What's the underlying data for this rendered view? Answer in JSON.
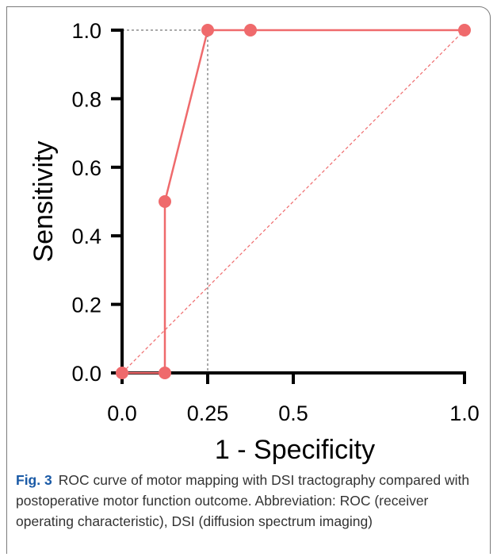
{
  "chart_data": {
    "type": "line",
    "xlabel": "1 - Specificity",
    "ylabel": "Sensitivity",
    "xlim": [
      0,
      1
    ],
    "ylim": [
      0,
      1
    ],
    "x_ticks": [
      "0.0",
      "0.25",
      "0.5",
      "1.0"
    ],
    "x_tick_values": [
      0,
      0.25,
      0.5,
      1
    ],
    "y_ticks": [
      "0.0",
      "0.2",
      "0.4",
      "0.6",
      "0.8",
      "1.0"
    ],
    "y_tick_values": [
      0,
      0.2,
      0.4,
      0.6,
      0.8,
      1
    ],
    "series": [
      {
        "color": "#ef6a6c",
        "points": [
          [
            0,
            0
          ],
          [
            0.125,
            0
          ],
          [
            0.125,
            0.5
          ],
          [
            0.25,
            1
          ],
          [
            0.375,
            1
          ],
          [
            1,
            1
          ]
        ]
      }
    ],
    "reference_line": {
      "from": [
        0,
        0
      ],
      "to": [
        1,
        1
      ],
      "color": "#ef6a6c",
      "style": "dashed"
    },
    "guide_point": {
      "x": 0.25,
      "y": 1,
      "style": "dotted"
    },
    "grid": false
  },
  "caption": {
    "label": "Fig. 3",
    "text": "ROC curve of motor mapping with DSI tractography compared with postoperative motor function outcome. Abbreviation: ROC (receiver operating characteristic), DSI (diffusion spectrum imaging)"
  },
  "colors": {
    "caption_label": "#1a5aa6",
    "series": "#ef6a6c"
  }
}
